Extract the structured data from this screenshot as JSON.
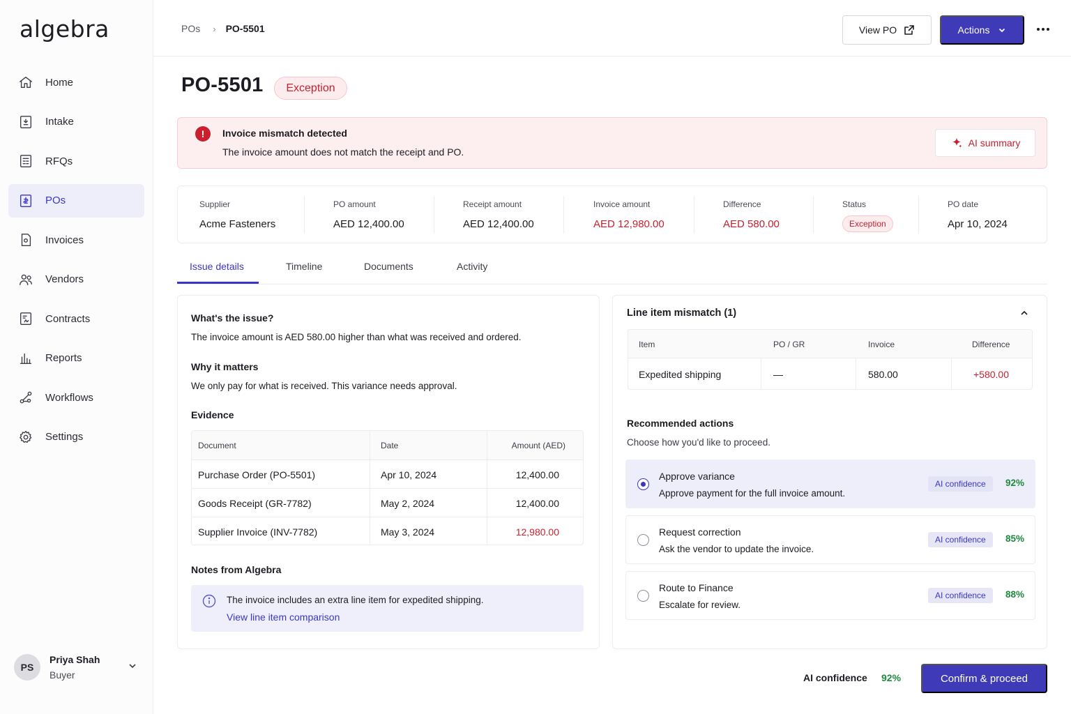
{
  "app": {
    "logo": "algebra"
  },
  "sidebar": {
    "items": [
      {
        "label": "Home",
        "icon": "home-icon"
      },
      {
        "label": "Intake",
        "icon": "intake-icon"
      },
      {
        "label": "RFQs",
        "icon": "rfq-icon"
      },
      {
        "label": "POs",
        "icon": "po-icon",
        "active": true
      },
      {
        "label": "Invoices",
        "icon": "invoice-icon"
      },
      {
        "label": "Vendors",
        "icon": "vendors-icon"
      },
      {
        "label": "Contracts",
        "icon": "contracts-icon"
      },
      {
        "label": "Reports",
        "icon": "reports-icon"
      },
      {
        "label": "Workflows",
        "icon": "workflows-icon"
      },
      {
        "label": "Settings",
        "icon": "gear-icon"
      }
    ],
    "user": {
      "initials": "PS",
      "name": "Priya Shah",
      "role": "Buyer"
    }
  },
  "topbar": {
    "breadcrumb": [
      "POs",
      "PO-5501"
    ],
    "view_po_label": "View PO",
    "actions_label": "Actions"
  },
  "header": {
    "title": "PO-5501",
    "status_badge": "Exception"
  },
  "alert": {
    "title": "Invoice mismatch detected",
    "message": "The invoice amount does not match the receipt and PO.",
    "ai_summary_label": "AI summary"
  },
  "summary": {
    "supplier_label": "Supplier",
    "supplier": "Acme Fasteners",
    "po_amount_label": "PO amount",
    "po_amount": "AED 12,400.00",
    "receipt_amount_label": "Receipt amount",
    "receipt_amount": "AED 12,400.00",
    "invoice_amount_label": "Invoice amount",
    "invoice_amount": "AED 12,980.00",
    "difference_label": "Difference",
    "difference": "AED 580.00",
    "status_label": "Status",
    "status": "Exception",
    "po_date_label": "PO date",
    "po_date": "Apr 10, 2024"
  },
  "tabs": [
    "Issue details",
    "Timeline",
    "Documents",
    "Activity"
  ],
  "issue": {
    "what_title": "What's the issue?",
    "what_body": "The invoice amount is AED 580.00 higher than what was received and ordered.",
    "why_title": "Why it matters",
    "why_body": "We only pay for what is received. This variance needs approval.",
    "evidence_title": "Evidence",
    "evidence_headers": [
      "Document",
      "Date",
      "Amount (AED)"
    ],
    "evidence_rows": [
      {
        "document": "Purchase Order (PO-5501)",
        "date": "Apr 10, 2024",
        "amount": "12,400.00"
      },
      {
        "document": "Goods Receipt (GR-7782)",
        "date": "May 2, 2024",
        "amount": "12,400.00"
      },
      {
        "document": "Supplier Invoice (INV-7782)",
        "date": "May 3, 2024",
        "amount": "12,980.00"
      }
    ],
    "notes_title": "Notes from Algebra",
    "note_text": "The invoice includes an extra line item for expedited shipping.",
    "note_link": "View line item comparison"
  },
  "mismatch": {
    "title": "Line item mismatch (1)",
    "headers": [
      "Item",
      "PO / GR",
      "Invoice",
      "Difference"
    ],
    "row": {
      "item": "Expedited shipping",
      "po_gr": "—",
      "invoice": "580.00",
      "difference": "+580.00"
    }
  },
  "recommended": {
    "title": "Recommended actions",
    "subtitle": "Choose how you'd like to proceed.",
    "options": [
      {
        "title": "Approve variance",
        "desc": "Approve payment for the full invoice amount.",
        "ai_label": "AI confidence",
        "confidence": "92%",
        "selected": true
      },
      {
        "title": "Request correction",
        "desc": "Ask the vendor to update the invoice.",
        "ai_label": "AI confidence",
        "confidence": "85%",
        "selected": false
      },
      {
        "title": "Route to Finance",
        "desc": "Escalate for review.",
        "ai_label": "AI confidence",
        "confidence": "88%",
        "selected": false
      }
    ]
  },
  "footer": {
    "ai_label": "AI confidence",
    "confidence": "92%",
    "confirm_label": "Confirm & proceed"
  },
  "colors": {
    "accent": "#3f3ab8",
    "danger": "#c8202f",
    "success": "#1f8a3d"
  }
}
